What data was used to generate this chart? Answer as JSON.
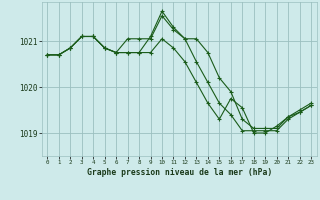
{
  "background_color": "#ceeaea",
  "grid_color": "#9bbfbf",
  "line_color": "#1a5c1a",
  "marker_color": "#1a5c1a",
  "title": "Graphe pression niveau de la mer (hPa)",
  "xlim": [
    -0.5,
    23.5
  ],
  "ylim": [
    1018.5,
    1021.85
  ],
  "yticks": [
    1019,
    1020,
    1021
  ],
  "xticks": [
    0,
    1,
    2,
    3,
    4,
    5,
    6,
    7,
    8,
    9,
    10,
    11,
    12,
    13,
    14,
    15,
    16,
    17,
    18,
    19,
    20,
    21,
    22,
    23
  ],
  "series1": [
    1020.7,
    1020.7,
    1020.85,
    1021.1,
    1021.1,
    1020.85,
    1020.75,
    1020.75,
    1020.75,
    1020.75,
    1021.05,
    1020.85,
    1020.55,
    1020.1,
    1019.65,
    1019.3,
    1019.75,
    1019.55,
    1019.0,
    1019.0,
    1019.15,
    1019.35,
    1019.45,
    1019.6
  ],
  "series2": [
    1020.7,
    1020.7,
    1020.85,
    1021.1,
    1021.1,
    1020.85,
    1020.75,
    1020.75,
    1020.75,
    1021.1,
    1021.65,
    1021.3,
    1021.05,
    1020.55,
    1020.1,
    1019.65,
    1019.4,
    1019.05,
    1019.05,
    1019.05,
    1019.05,
    1019.3,
    1019.45,
    1019.6
  ],
  "series3": [
    1020.7,
    1020.7,
    1020.85,
    1021.1,
    1021.1,
    1020.85,
    1020.75,
    1021.05,
    1021.05,
    1021.05,
    1021.55,
    1021.25,
    1021.05,
    1021.05,
    1020.75,
    1020.2,
    1019.9,
    1019.3,
    1019.1,
    1019.1,
    1019.1,
    1019.35,
    1019.5,
    1019.65
  ]
}
